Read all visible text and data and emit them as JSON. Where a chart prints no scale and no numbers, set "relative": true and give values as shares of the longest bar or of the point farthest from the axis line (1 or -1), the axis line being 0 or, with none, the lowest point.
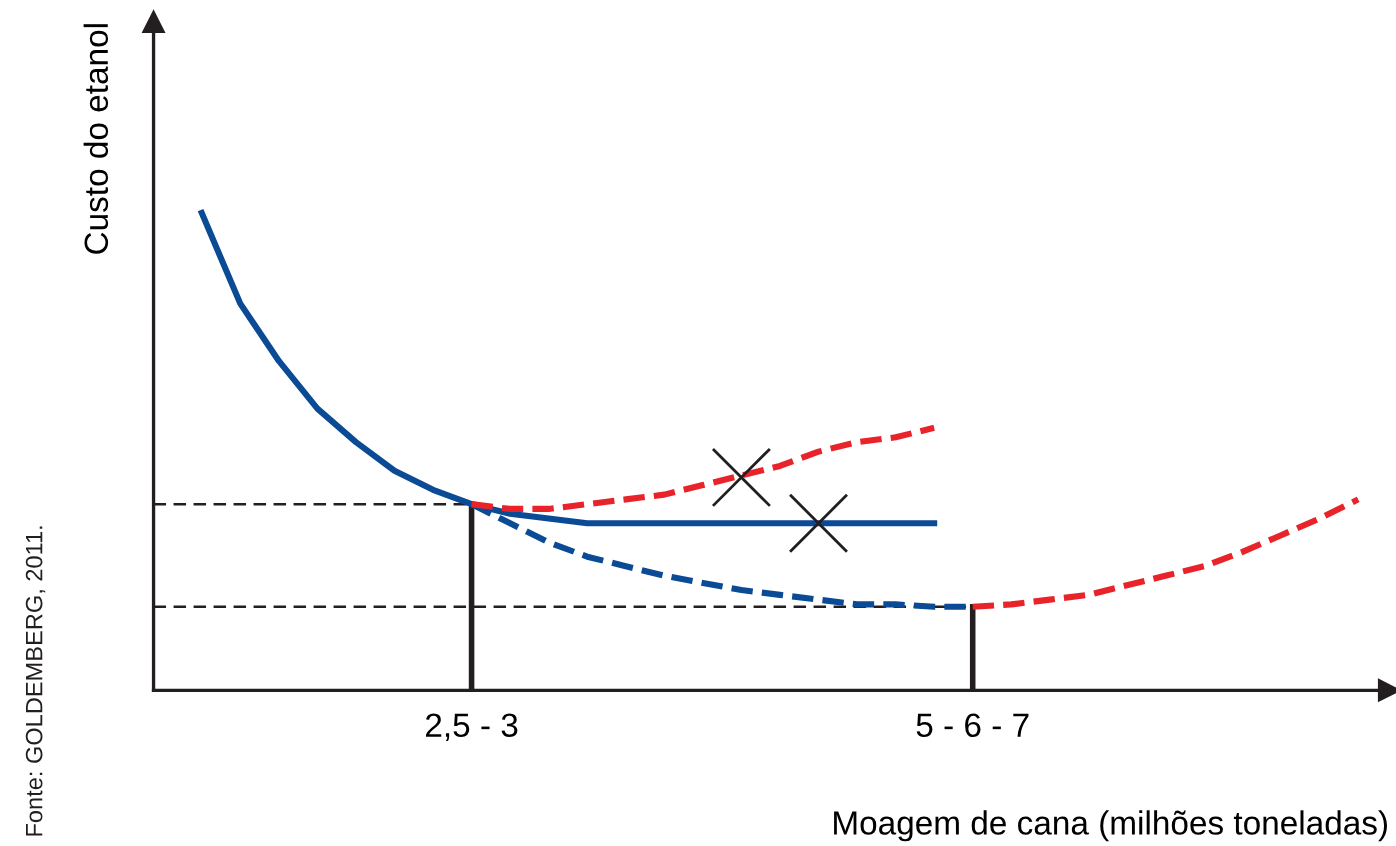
{
  "chart_data": {
    "type": "line",
    "relative": true,
    "ylabel": "Custo do etanol",
    "xlabel": "Moagem de cana (milhões toneladas)",
    "annotations": [
      "Fonte: GOLDEMBERG, 2011."
    ],
    "categories": [
      null,
      null,
      null,
      null,
      null,
      null,
      null,
      "2,5 - 3",
      null,
      null,
      null,
      null,
      null,
      null,
      null,
      null,
      null,
      null,
      null,
      null,
      "5 - 6 - 7",
      null,
      null,
      null,
      null,
      null,
      null,
      null,
      null,
      null,
      null
    ],
    "series": [
      {
        "line_style": "solid",
        "color": "#0b4a94",
        "values": [
          1.0,
          0.81,
          0.69,
          0.59,
          0.52,
          0.46,
          0.42,
          0.39,
          0.37,
          0.36,
          0.35,
          0.35,
          0.35,
          0.35,
          0.35,
          0.35,
          0.35,
          0.35,
          0.35,
          0.35,
          null,
          null,
          null,
          null,
          null,
          null,
          null,
          null,
          null,
          null,
          null
        ]
      },
      {
        "line_style": "dashed",
        "color": "#0b4a94",
        "values": [
          null,
          null,
          null,
          null,
          null,
          null,
          null,
          0.39,
          0.35,
          0.31,
          0.28,
          0.26,
          0.24,
          0.225,
          0.21,
          0.2,
          0.19,
          0.18,
          0.18,
          0.175,
          0.175,
          null,
          null,
          null,
          null,
          null,
          null,
          null,
          null,
          null,
          null
        ]
      },
      {
        "line_style": "dashed",
        "color": "#e8242a",
        "values": [
          null,
          null,
          null,
          null,
          null,
          null,
          null,
          0.39,
          0.38,
          0.38,
          0.39,
          0.4,
          0.41,
          0.43,
          0.45,
          0.47,
          0.5,
          0.52,
          0.53,
          0.55,
          null,
          null,
          null,
          null,
          null,
          null,
          null,
          null,
          null,
          null,
          null
        ]
      },
      {
        "line_style": "dashed",
        "color": "#e8242a",
        "values": [
          null,
          null,
          null,
          null,
          null,
          null,
          null,
          null,
          null,
          null,
          null,
          null,
          null,
          null,
          null,
          null,
          null,
          null,
          null,
          null,
          0.175,
          0.18,
          0.19,
          0.2,
          0.22,
          0.24,
          0.26,
          0.29,
          0.325,
          0.36,
          0.4
        ]
      },
      {
        "type": "scatter",
        "marker": "cross",
        "color": "#231f20",
        "values": [
          null,
          null,
          null,
          null,
          null,
          null,
          null,
          null,
          null,
          null,
          null,
          null,
          null,
          null,
          0.446,
          null,
          0.35,
          null,
          null,
          null,
          null,
          null,
          null,
          null,
          null,
          null,
          null,
          null,
          null,
          null,
          null
        ]
      }
    ],
    "ref_lines": [
      {
        "axis": "y",
        "value": 0.39,
        "line_style": "dashed",
        "color": "#231f20"
      },
      {
        "axis": "y",
        "value": 0.175,
        "line_style": "dashed",
        "color": "#231f20"
      },
      {
        "axis": "x",
        "value": "2,5 - 3",
        "line_style": "solid",
        "color": "#231f20"
      },
      {
        "axis": "x",
        "value": "5 - 6 - 7",
        "line_style": "solid",
        "color": "#231f20"
      }
    ]
  }
}
